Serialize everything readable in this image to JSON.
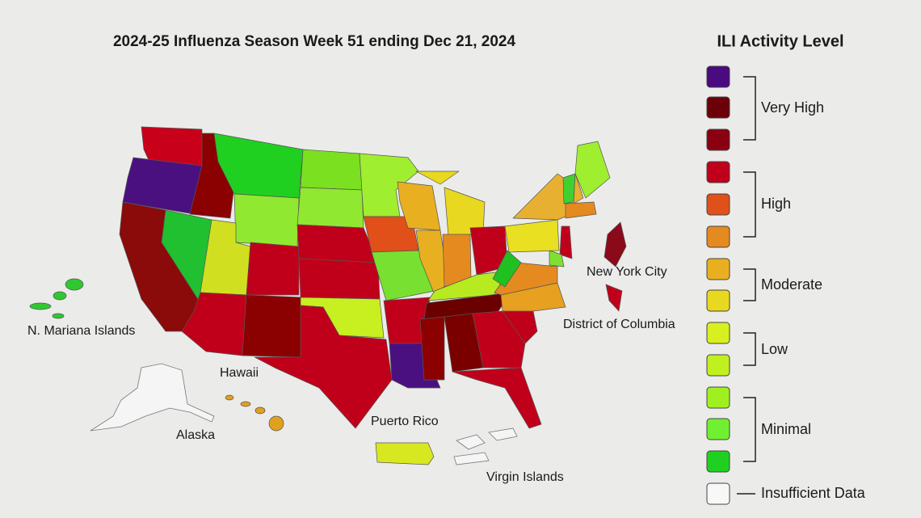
{
  "title": "2024-25 Influenza Season Week 51 ending Dec 21, 2024",
  "legend": {
    "title": "ILI Activity Level",
    "groups": [
      "Very High",
      "High",
      "Moderate",
      "Low",
      "Minimal"
    ],
    "insufficient": "Insufficient Data"
  },
  "map": {
    "labels": [
      "N. Mariana Islands",
      "Hawaii",
      "Alaska",
      "Puerto Rico",
      "Virgin Islands",
      "New York City",
      "District of Columbia"
    ]
  }
}
